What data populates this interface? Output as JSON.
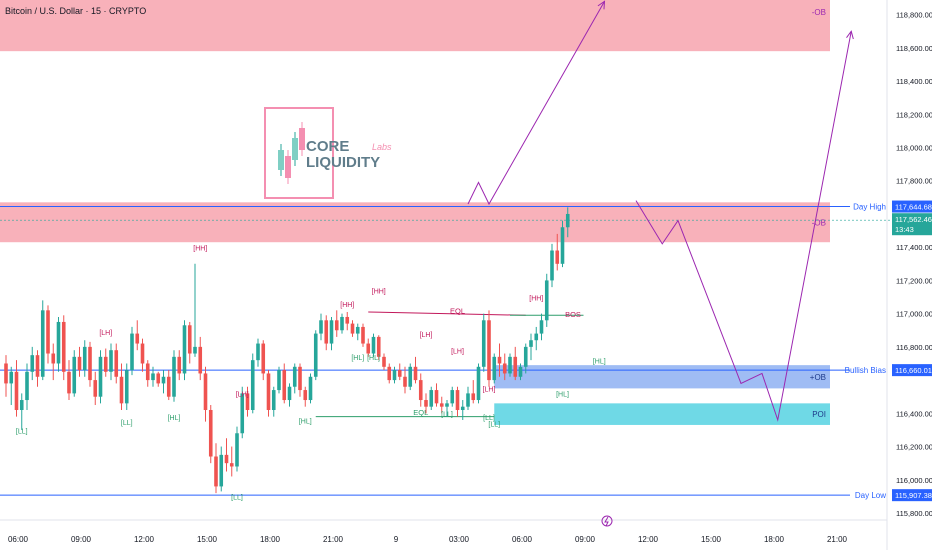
{
  "header": {
    "title": "Bitcoin / U.S. Dollar · 15 · CRYPTO"
  },
  "logo": {
    "line1": "CORE",
    "line2": "LIQUIDITY",
    "script": "Labs"
  },
  "colors": {
    "bull": "#26a69a",
    "bear": "#ef5350",
    "zone_red": "#f7a8b2",
    "zone_blue": "#7fa6f0",
    "zone_teal": "#5fd5e3",
    "line_blue": "#2962ff",
    "arrow": "#9c27b0",
    "label_green": "#2e9e6b",
    "label_red": "#c2185b"
  },
  "chart_data": {
    "type": "candlestick",
    "title": "Bitcoin / U.S. Dollar · 15 · CRYPTO",
    "ylim": [
      115800,
      118900
    ],
    "price_ticks": [
      "118,800.00",
      "118,600.00",
      "118,400.00",
      "118,200.00",
      "118,000.00",
      "117,800.00",
      "117,400.00",
      "117,200.00",
      "117,000.00",
      "116,800.00",
      "116,400.00",
      "116,200.00",
      "116,000.00",
      "115,800.00"
    ],
    "price_tick_values": [
      118800,
      118600,
      118400,
      118200,
      118000,
      117800,
      117400,
      117200,
      117000,
      116800,
      116400,
      116200,
      116000,
      115800
    ],
    "time_ticks": [
      "06:00",
      "09:00",
      "12:00",
      "15:00",
      "18:00",
      "21:00",
      "9",
      "03:00",
      "06:00",
      "09:00",
      "12:00",
      "15:00",
      "18:00",
      "21:00"
    ],
    "time_tick_values": [
      0,
      12,
      24,
      36,
      48,
      60,
      72,
      84,
      96,
      108,
      120,
      132,
      144,
      156
    ],
    "candles": [
      [
        116700,
        116750,
        116500,
        116580
      ],
      [
        116580,
        116680,
        116450,
        116650
      ],
      [
        116650,
        116720,
        116380,
        116420
      ],
      [
        116420,
        116520,
        116300,
        116480
      ],
      [
        116480,
        116700,
        116420,
        116650
      ],
      [
        116650,
        116800,
        116600,
        116750
      ],
      [
        116750,
        116780,
        116560,
        116620
      ],
      [
        116620,
        117080,
        116600,
        117020
      ],
      [
        117020,
        117050,
        116700,
        116760
      ],
      [
        116760,
        116820,
        116600,
        116700
      ],
      [
        116700,
        116980,
        116650,
        116950
      ],
      [
        116950,
        116990,
        116600,
        116650
      ],
      [
        116650,
        116720,
        116480,
        116520
      ],
      [
        116520,
        116780,
        116500,
        116740
      ],
      [
        116740,
        116800,
        116620,
        116660
      ],
      [
        116660,
        116840,
        116620,
        116800
      ],
      [
        116800,
        116830,
        116560,
        116600
      ],
      [
        116600,
        116650,
        116450,
        116500
      ],
      [
        116500,
        116780,
        116460,
        116740
      ],
      [
        116740,
        116790,
        116620,
        116650
      ],
      [
        116650,
        116820,
        116600,
        116780
      ],
      [
        116780,
        116820,
        116580,
        116620
      ],
      [
        116620,
        116700,
        116420,
        116460
      ],
      [
        116460,
        116700,
        116420,
        116660
      ],
      [
        116660,
        116920,
        116630,
        116880
      ],
      [
        116880,
        116960,
        116780,
        116820
      ],
      [
        116820,
        116850,
        116650,
        116700
      ],
      [
        116700,
        116720,
        116560,
        116600
      ],
      [
        116600,
        116680,
        116560,
        116640
      ],
      [
        116640,
        116650,
        116560,
        116580
      ],
      [
        116580,
        116660,
        116520,
        116620
      ],
      [
        116620,
        116660,
        116480,
        116500
      ],
      [
        116500,
        116780,
        116470,
        116740
      ],
      [
        116740,
        116780,
        116600,
        116640
      ],
      [
        116640,
        116960,
        116600,
        116930
      ],
      [
        116930,
        116950,
        116700,
        116760
      ],
      [
        116760,
        117300,
        116740,
        116800
      ],
      [
        116800,
        116860,
        116600,
        116640
      ],
      [
        116640,
        116680,
        116350,
        116420
      ],
      [
        116420,
        116450,
        116100,
        116140
      ],
      [
        116140,
        116220,
        115920,
        115960
      ],
      [
        115960,
        116200,
        115930,
        116150
      ],
      [
        116150,
        116250,
        116050,
        116100
      ],
      [
        116100,
        116200,
        116020,
        116080
      ],
      [
        116080,
        116320,
        116050,
        116280
      ],
      [
        116280,
        116560,
        116250,
        116520
      ],
      [
        116520,
        116560,
        116380,
        116420
      ],
      [
        116420,
        116760,
        116400,
        116720
      ],
      [
        116720,
        116850,
        116680,
        116820
      ],
      [
        116820,
        116840,
        116600,
        116640
      ],
      [
        116640,
        116660,
        116380,
        116420
      ],
      [
        116420,
        116560,
        116380,
        116540
      ],
      [
        116540,
        116680,
        116520,
        116660
      ],
      [
        116660,
        116700,
        116460,
        116480
      ],
      [
        116480,
        116580,
        116440,
        116560
      ],
      [
        116560,
        116700,
        116520,
        116680
      ],
      [
        116680,
        116700,
        116500,
        116540
      ],
      [
        116540,
        116560,
        116440,
        116480
      ],
      [
        116480,
        116640,
        116460,
        116620
      ],
      [
        116620,
        116900,
        116600,
        116880
      ],
      [
        116880,
        117000,
        116840,
        116960
      ],
      [
        116960,
        116990,
        116780,
        116820
      ],
      [
        116820,
        116980,
        116780,
        116960
      ],
      [
        116960,
        117020,
        116860,
        116900
      ],
      [
        116900,
        117000,
        116880,
        116980
      ],
      [
        116980,
        117010,
        116900,
        116940
      ],
      [
        116940,
        116960,
        116860,
        116880
      ],
      [
        116880,
        116940,
        116840,
        116920
      ],
      [
        116920,
        116940,
        116800,
        116820
      ],
      [
        116820,
        116850,
        116740,
        116760
      ],
      [
        116760,
        116880,
        116740,
        116860
      ],
      [
        116860,
        116870,
        116720,
        116740
      ],
      [
        116740,
        116760,
        116660,
        116680
      ],
      [
        116680,
        116700,
        116580,
        116600
      ],
      [
        116600,
        116680,
        116580,
        116660
      ],
      [
        116660,
        116700,
        116600,
        116620
      ],
      [
        116620,
        116680,
        116520,
        116560
      ],
      [
        116560,
        116700,
        116540,
        116680
      ],
      [
        116680,
        116740,
        116580,
        116600
      ],
      [
        116600,
        116640,
        116440,
        116480
      ],
      [
        116480,
        116520,
        116400,
        116440
      ],
      [
        116440,
        116560,
        116420,
        116540
      ],
      [
        116540,
        116580,
        116440,
        116460
      ],
      [
        116460,
        116500,
        116400,
        116440
      ],
      [
        116440,
        116480,
        116380,
        116460
      ],
      [
        116460,
        116560,
        116440,
        116540
      ],
      [
        116540,
        116560,
        116380,
        116420
      ],
      [
        116420,
        116480,
        116360,
        116440
      ],
      [
        116440,
        116560,
        116420,
        116520
      ],
      [
        116520,
        116600,
        116460,
        116480
      ],
      [
        116480,
        116700,
        116460,
        116680
      ],
      [
        116680,
        117000,
        116650,
        116960
      ],
      [
        116960,
        117020,
        116560,
        116600
      ],
      [
        116600,
        116760,
        116580,
        116740
      ],
      [
        116740,
        116820,
        116620,
        116700
      ],
      [
        116700,
        116760,
        116600,
        116640
      ],
      [
        116640,
        116760,
        116620,
        116740
      ],
      [
        116740,
        116800,
        116600,
        116620
      ],
      [
        116620,
        116700,
        116600,
        116680
      ],
      [
        116680,
        116820,
        116640,
        116800
      ],
      [
        116800,
        116880,
        116720,
        116840
      ],
      [
        116840,
        116920,
        116780,
        116880
      ],
      [
        116880,
        117000,
        116840,
        116960
      ],
      [
        116960,
        117240,
        116920,
        117200
      ],
      [
        117200,
        117420,
        117160,
        117380
      ],
      [
        117380,
        117480,
        117260,
        117300
      ],
      [
        117300,
        117560,
        117280,
        117520
      ],
      [
        117520,
        117640,
        117460,
        117600
      ]
    ],
    "zones": [
      {
        "name": "supply-ob-top",
        "label": "-OB",
        "from": 118580,
        "to": 118900,
        "color": "#f7a8b2"
      },
      {
        "name": "supply-ob-mid",
        "label": "-OB",
        "from": 117430,
        "to": 117670,
        "color": "#f7a8b2"
      },
      {
        "name": "bullish-ob",
        "label": "+OB",
        "from": 116550,
        "to": 116690,
        "color": "#7fa6f0"
      },
      {
        "name": "poi",
        "label": "POI",
        "from": 116330,
        "to": 116460,
        "color": "#5fd5e3"
      }
    ],
    "levels": [
      {
        "name": "day-high",
        "label": "Day High",
        "price": 117644.68,
        "tag": "117,644.68"
      },
      {
        "name": "bullish-bias",
        "label": "Bullish Bias",
        "price": 116660.01,
        "tag": "116,660.01"
      },
      {
        "name": "day-low",
        "label": "Day Low",
        "price": 115907.38,
        "tag": "115,907.38"
      }
    ],
    "current_price": {
      "tag": "117,562.46",
      "countdown": "13:43",
      "price": 117562.46
    },
    "structure_labels": [
      {
        "text": "[LL]",
        "bar": 3,
        "price": 116280,
        "color": "green"
      },
      {
        "text": "[LH]",
        "bar": 19,
        "price": 116870,
        "color": "red"
      },
      {
        "text": "[LL]",
        "bar": 23,
        "price": 116330,
        "color": "green"
      },
      {
        "text": "[HL]",
        "bar": 32,
        "price": 116360,
        "color": "green"
      },
      {
        "text": "[HH]",
        "bar": 37,
        "price": 117380,
        "color": "red"
      },
      {
        "text": "[LH]",
        "bar": 45,
        "price": 116500,
        "color": "red"
      },
      {
        "text": "[LL]",
        "bar": 44,
        "price": 115880,
        "color": "green"
      },
      {
        "text": "[HL]",
        "bar": 57,
        "price": 116340,
        "color": "green"
      },
      {
        "text": "[HH]",
        "bar": 65,
        "price": 117040,
        "color": "red"
      },
      {
        "text": "[HL]",
        "bar": 67,
        "price": 116720,
        "color": "green"
      },
      {
        "text": "[HH]",
        "bar": 71,
        "price": 117120,
        "color": "red"
      },
      {
        "text": "[HL]",
        "bar": 70,
        "price": 116720,
        "color": "green"
      },
      {
        "text": "[LH]",
        "bar": 80,
        "price": 116860,
        "color": "red"
      },
      {
        "text": "[LL]",
        "bar": 84,
        "price": 116380,
        "color": "green"
      },
      {
        "text": "[LH]",
        "bar": 86,
        "price": 116760,
        "color": "red"
      },
      {
        "text": "[LL]",
        "bar": 92,
        "price": 116360,
        "color": "green"
      },
      {
        "text": "[LH]",
        "bar": 92,
        "price": 116530,
        "color": "red"
      },
      {
        "text": "[LL]",
        "bar": 93,
        "price": 116320,
        "color": "green"
      },
      {
        "text": "[HH]",
        "bar": 101,
        "price": 117080,
        "color": "red"
      },
      {
        "text": "[HL]",
        "bar": 106,
        "price": 116500,
        "color": "green"
      },
      {
        "text": "[HL]",
        "bar": 113,
        "price": 116700,
        "color": "green"
      }
    ],
    "annotations": [
      {
        "text": "EQL",
        "bar": 86,
        "price": 117000,
        "color": "#c2185b"
      },
      {
        "text": "EQL",
        "bar": 79,
        "price": 116390,
        "color": "#2e9e6b"
      },
      {
        "text": "BOS",
        "bar": 108,
        "price": 116980,
        "color": "#c2185b"
      }
    ],
    "projection_paths": [
      {
        "name": "projection-up-first",
        "points": [
          [
            88,
            117660
          ],
          [
            90,
            117790
          ],
          [
            92,
            117660
          ],
          [
            114,
            118880
          ]
        ]
      },
      {
        "name": "projection-main",
        "points": [
          [
            120,
            117680
          ],
          [
            125,
            117420
          ],
          [
            128,
            117560
          ],
          [
            140,
            116580
          ],
          [
            144,
            116640
          ],
          [
            147,
            116360
          ],
          [
            161,
            118700
          ]
        ]
      }
    ]
  }
}
